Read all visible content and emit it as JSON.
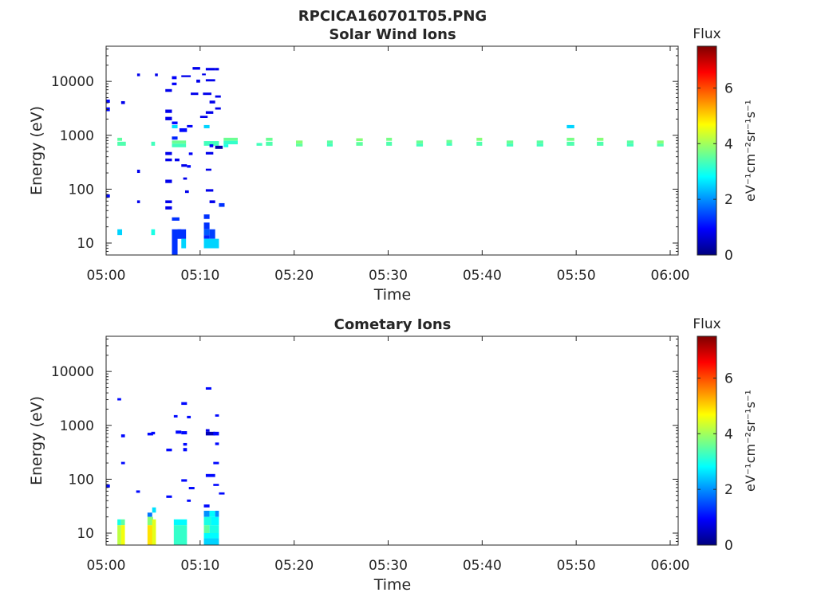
{
  "figure_title": "RPCICA160701T05.PNG",
  "colors": {
    "axis": "#262626",
    "colormap": [
      "#00007f",
      "#0000ff",
      "#007fff",
      "#00ffff",
      "#7fff7f",
      "#ffff00",
      "#ff7f00",
      "#ff0000",
      "#7f0000"
    ]
  },
  "chart_data": [
    {
      "type": "heatmap",
      "title": "Solar Wind Ions",
      "xlabel": "Time",
      "ylabel": "Energy (eV)",
      "x_ticks": [
        "05:00",
        "05:10",
        "05:20",
        "05:30",
        "05:40",
        "05:50",
        "06:00"
      ],
      "x_range_minutes": [
        0,
        60.5
      ],
      "y_ticks": [
        "10",
        "100",
        "1000",
        "10000"
      ],
      "y_range": [
        6,
        45000
      ],
      "y_scale": "log",
      "colorbar": {
        "title": "Flux",
        "unit": "eV⁻¹cm⁻²sr⁻¹s⁻¹",
        "ticks": [
          "0",
          "2",
          "4",
          "6"
        ],
        "range": [
          0,
          7.5
        ]
      },
      "cells": [
        [
          0.0,
          0.4,
          4000,
          4600,
          1.0
        ],
        [
          0.0,
          0.4,
          2800,
          3300,
          1.0
        ],
        [
          0.0,
          0.4,
          70,
          80,
          1.0
        ],
        [
          1.2,
          1.7,
          14,
          18,
          2.5
        ],
        [
          1.2,
          1.7,
          790,
          900,
          3.5
        ],
        [
          1.2,
          2.1,
          640,
          760,
          3.4
        ],
        [
          1.6,
          2.0,
          3800,
          4300,
          0.8
        ],
        [
          3.3,
          3.6,
          12500,
          14000,
          0.8
        ],
        [
          3.3,
          3.6,
          200,
          230,
          0.8
        ],
        [
          3.3,
          3.6,
          55,
          62,
          0.8
        ],
        [
          4.8,
          5.2,
          14,
          18,
          3.0
        ],
        [
          4.8,
          5.2,
          640,
          760,
          3.3
        ],
        [
          5.2,
          5.5,
          12500,
          14000,
          0.8
        ],
        [
          6.3,
          7.0,
          6400,
          7200,
          0.8
        ],
        [
          7.0,
          7.5,
          11000,
          12500,
          0.9
        ],
        [
          7.0,
          7.5,
          8500,
          9500,
          0.9
        ],
        [
          6.3,
          7.0,
          2600,
          3000,
          0.8
        ],
        [
          6.3,
          7.0,
          1900,
          2200,
          0.8
        ],
        [
          6.3,
          7.0,
          430,
          490,
          0.8
        ],
        [
          6.3,
          7.0,
          330,
          370,
          0.8
        ],
        [
          6.3,
          7.0,
          130,
          150,
          0.8
        ],
        [
          6.3,
          7.0,
          55,
          62,
          0.8
        ],
        [
          6.3,
          7.0,
          42,
          48,
          0.8
        ],
        [
          7.0,
          7.6,
          1600,
          1800,
          1.0
        ],
        [
          7.0,
          7.6,
          1350,
          1550,
          2.6
        ],
        [
          7.0,
          7.6,
          830,
          950,
          1.2
        ],
        [
          7.0,
          8.5,
          700,
          800,
          3.6
        ],
        [
          7.0,
          8.5,
          600,
          700,
          3.3
        ],
        [
          7.3,
          7.8,
          330,
          370,
          0.8
        ],
        [
          7.0,
          7.8,
          26,
          30,
          1.3
        ],
        [
          7.0,
          7.6,
          6,
          18,
          1.3
        ],
        [
          7.6,
          8.0,
          12,
          18,
          1.3
        ],
        [
          8.0,
          8.5,
          8,
          12,
          2.5
        ],
        [
          7.6,
          8.5,
          12,
          18,
          1.3
        ],
        [
          7.8,
          8.6,
          1150,
          1350,
          1.0
        ],
        [
          8.0,
          8.6,
          260,
          290,
          0.8
        ],
        [
          8.2,
          8.6,
          150,
          165,
          0.8
        ],
        [
          8.4,
          8.8,
          85,
          95,
          0.8
        ],
        [
          8.6,
          9.0,
          250,
          280,
          1.0
        ],
        [
          8.8,
          9.2,
          430,
          480,
          0.9
        ],
        [
          8.6,
          9.2,
          1400,
          1550,
          0.9
        ],
        [
          9.2,
          10.0,
          16500,
          18500,
          0.8
        ],
        [
          9.0,
          9.8,
          5600,
          6200,
          0.8
        ],
        [
          9.6,
          10.0,
          9500,
          10800,
          0.8
        ],
        [
          8.0,
          9.0,
          12000,
          13000,
          0.8
        ],
        [
          10.2,
          10.6,
          13000,
          14000,
          0.8
        ],
        [
          10.6,
          11.6,
          10000,
          11000,
          0.8
        ],
        [
          10.6,
          11.6,
          16000,
          17800,
          0.8
        ],
        [
          11.6,
          12.0,
          16000,
          17800,
          0.8
        ],
        [
          10.3,
          11.2,
          5600,
          6200,
          0.8
        ],
        [
          11.0,
          11.6,
          3900,
          4400,
          0.8
        ],
        [
          10.6,
          11.4,
          2500,
          2800,
          0.8
        ],
        [
          10.0,
          10.8,
          2100,
          2300,
          0.8
        ],
        [
          11.6,
          12.2,
          3000,
          3300,
          0.8
        ],
        [
          11.6,
          12.2,
          5000,
          5500,
          0.8
        ],
        [
          10.4,
          11.0,
          1350,
          1550,
          2.5
        ],
        [
          10.4,
          12.0,
          640,
          780,
          3.3
        ],
        [
          11.0,
          11.4,
          600,
          680,
          0.9
        ],
        [
          11.6,
          12.4,
          560,
          640,
          0.3
        ],
        [
          10.6,
          11.4,
          440,
          490,
          0.8
        ],
        [
          10.6,
          11.2,
          220,
          240,
          0.8
        ],
        [
          10.6,
          11.4,
          90,
          100,
          0.8
        ],
        [
          11.0,
          11.6,
          55,
          62,
          0.8
        ],
        [
          12.0,
          12.6,
          47,
          55,
          1.3
        ],
        [
          10.4,
          11.0,
          28,
          34,
          1.3
        ],
        [
          10.4,
          11.0,
          18,
          24,
          1.3
        ],
        [
          10.4,
          11.0,
          14,
          18,
          1.6
        ],
        [
          10.4,
          11.0,
          12,
          14,
          1.2
        ],
        [
          11.0,
          11.6,
          12,
          18,
          1.4
        ],
        [
          10.4,
          12.0,
          8,
          12,
          2.5
        ],
        [
          12.5,
          14.0,
          790,
          900,
          3.6
        ],
        [
          12.5,
          14.0,
          680,
          790,
          3.2
        ],
        [
          12.5,
          13.0,
          600,
          680,
          3.0
        ],
        [
          16.0,
          16.6,
          640,
          720,
          3.3
        ],
        [
          17.0,
          17.7,
          790,
          900,
          3.6
        ],
        [
          17.0,
          17.7,
          640,
          760,
          3.4
        ],
        [
          20.2,
          20.9,
          700,
          800,
          3.8
        ],
        [
          20.2,
          20.9,
          620,
          700,
          3.5
        ],
        [
          23.5,
          24.1,
          700,
          800,
          3.5
        ],
        [
          23.5,
          24.1,
          620,
          700,
          3.3
        ],
        [
          26.6,
          27.3,
          780,
          880,
          3.8
        ],
        [
          26.6,
          27.3,
          640,
          750,
          3.5
        ],
        [
          29.8,
          30.4,
          790,
          900,
          3.7
        ],
        [
          29.8,
          30.4,
          640,
          760,
          3.4
        ],
        [
          33.0,
          33.7,
          700,
          800,
          3.6
        ],
        [
          33.0,
          33.7,
          620,
          700,
          3.3
        ],
        [
          36.2,
          36.8,
          720,
          820,
          3.6
        ],
        [
          36.2,
          36.8,
          640,
          720,
          3.3
        ],
        [
          39.4,
          40.0,
          790,
          900,
          3.8
        ],
        [
          39.4,
          40.0,
          640,
          760,
          3.4
        ],
        [
          42.6,
          43.3,
          700,
          800,
          3.6
        ],
        [
          42.6,
          43.3,
          620,
          700,
          3.3
        ],
        [
          45.8,
          46.5,
          700,
          800,
          3.5
        ],
        [
          45.8,
          46.5,
          620,
          700,
          3.3
        ],
        [
          49.0,
          49.8,
          1350,
          1550,
          2.5
        ],
        [
          49.0,
          49.8,
          790,
          900,
          3.7
        ],
        [
          49.0,
          49.8,
          640,
          760,
          3.4
        ],
        [
          52.2,
          52.9,
          790,
          900,
          3.8
        ],
        [
          52.2,
          52.9,
          640,
          760,
          3.4
        ],
        [
          55.4,
          56.1,
          700,
          800,
          3.5
        ],
        [
          55.4,
          56.1,
          620,
          700,
          3.3
        ],
        [
          58.6,
          59.3,
          700,
          800,
          3.8
        ],
        [
          58.6,
          59.3,
          620,
          700,
          3.4
        ]
      ]
    },
    {
      "type": "heatmap",
      "title": "Cometary Ions",
      "xlabel": "Time",
      "ylabel": "Energy (eV)",
      "x_ticks": [
        "05:00",
        "05:10",
        "05:20",
        "05:30",
        "05:40",
        "05:50",
        "06:00"
      ],
      "x_range_minutes": [
        0,
        60.5
      ],
      "y_ticks": [
        "10",
        "100",
        "1000",
        "10000"
      ],
      "y_range": [
        6,
        45000
      ],
      "y_scale": "log",
      "colorbar": {
        "title": "Flux",
        "unit": "eV⁻¹cm⁻²sr⁻¹s⁻¹",
        "ticks": [
          "0",
          "2",
          "4",
          "6"
        ],
        "range": [
          0,
          7.5
        ]
      },
      "cells": [
        [
          0.0,
          0.4,
          70,
          80,
          1.0
        ],
        [
          1.2,
          1.6,
          2900,
          3200,
          1.0
        ],
        [
          1.6,
          2.0,
          600,
          680,
          1.0
        ],
        [
          1.6,
          2.0,
          190,
          210,
          1.0
        ],
        [
          1.2,
          1.6,
          14,
          18,
          3.0
        ],
        [
          1.2,
          1.6,
          6,
          14,
          4.2
        ],
        [
          1.6,
          2.0,
          14,
          18,
          3.5
        ],
        [
          1.6,
          2.0,
          6,
          14,
          4.6
        ],
        [
          3.2,
          3.6,
          56,
          62,
          1.0
        ],
        [
          4.4,
          5.0,
          650,
          730,
          1.0
        ],
        [
          4.8,
          5.2,
          680,
          760,
          1.0
        ],
        [
          4.4,
          4.9,
          20,
          24,
          1.8
        ],
        [
          4.4,
          5.0,
          14,
          20,
          3.8
        ],
        [
          4.4,
          5.0,
          6,
          14,
          4.9
        ],
        [
          4.9,
          5.3,
          24,
          30,
          2.6
        ],
        [
          4.9,
          5.3,
          6,
          18,
          4.5
        ],
        [
          6.4,
          7.0,
          330,
          370,
          1.0
        ],
        [
          6.4,
          7.0,
          45,
          50,
          1.0
        ],
        [
          7.2,
          7.6,
          1400,
          1550,
          1.0
        ],
        [
          7.4,
          8.0,
          700,
          800,
          1.0
        ],
        [
          8.0,
          8.6,
          680,
          780,
          1.0
        ],
        [
          8.2,
          8.6,
          420,
          470,
          1.0
        ],
        [
          8.2,
          8.6,
          330,
          380,
          1.0
        ],
        [
          8.0,
          8.6,
          2400,
          2700,
          1.0
        ],
        [
          8.0,
          8.6,
          90,
          100,
          1.0
        ],
        [
          8.6,
          9.0,
          1350,
          1500,
          1.0
        ],
        [
          8.6,
          9.0,
          38,
          42,
          1.0
        ],
        [
          8.8,
          9.4,
          65,
          72,
          1.0
        ],
        [
          7.2,
          8.6,
          14,
          18,
          2.8
        ],
        [
          7.2,
          8.6,
          6,
          14,
          3.2
        ],
        [
          10.6,
          11.2,
          4600,
          5100,
          1.0
        ],
        [
          10.6,
          11.0,
          760,
          850,
          0.8
        ],
        [
          10.6,
          11.6,
          650,
          760,
          0.4
        ],
        [
          11.4,
          12.0,
          650,
          760,
          1.0
        ],
        [
          11.6,
          12.0,
          1450,
          1600,
          1.0
        ],
        [
          11.6,
          12.0,
          430,
          480,
          1.0
        ],
        [
          11.4,
          12.0,
          190,
          210,
          1.0
        ],
        [
          10.6,
          11.6,
          110,
          125,
          1.0
        ],
        [
          11.4,
          12.0,
          75,
          82,
          1.0
        ],
        [
          12.0,
          12.6,
          52,
          57,
          1.0
        ],
        [
          10.4,
          11.0,
          30,
          34,
          1.0
        ],
        [
          10.4,
          11.0,
          20,
          26,
          2.0
        ],
        [
          11.0,
          11.6,
          20,
          26,
          2.8
        ],
        [
          11.6,
          12.0,
          20,
          26,
          2.0
        ],
        [
          10.4,
          11.2,
          14,
          20,
          3.0
        ],
        [
          11.2,
          12.0,
          14,
          20,
          2.8
        ],
        [
          10.4,
          11.0,
          10,
          14,
          3.5
        ],
        [
          11.0,
          12.0,
          10,
          14,
          3.0
        ],
        [
          10.4,
          12.0,
          8,
          10,
          2.8
        ],
        [
          10.4,
          12.0,
          6,
          8,
          2.5
        ]
      ]
    }
  ]
}
